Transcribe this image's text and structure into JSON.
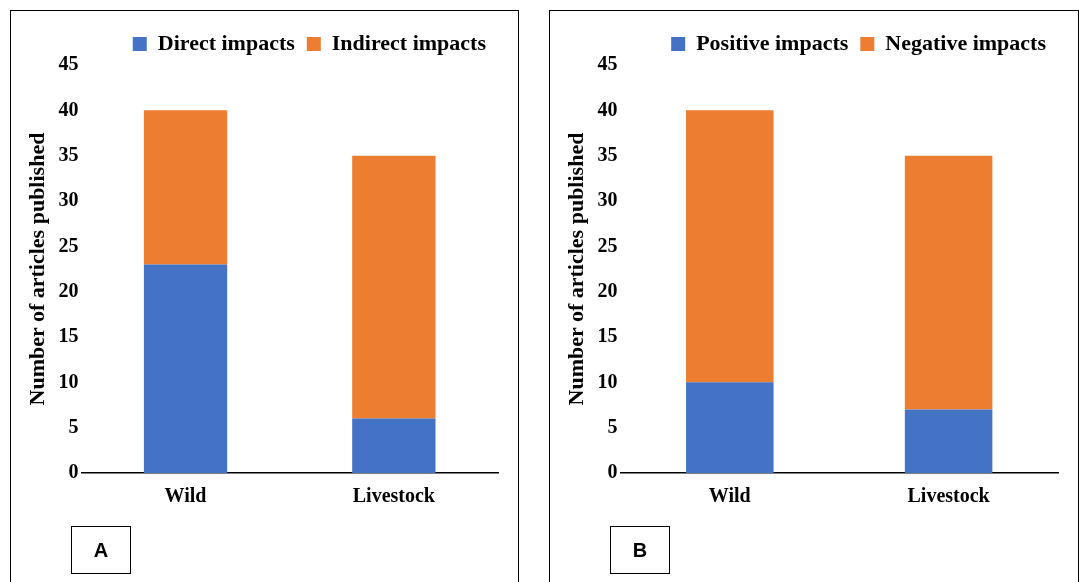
{
  "chart_data": [
    {
      "type": "bar",
      "stacked": true,
      "categories": [
        "Wild",
        "Livestock"
      ],
      "ylabel": "Number of articles published",
      "ylim": [
        0,
        45
      ],
      "yticks": [
        0,
        5,
        10,
        15,
        20,
        25,
        30,
        35,
        40,
        45
      ],
      "grid": false,
      "legend": "top right",
      "annotations": [
        "A"
      ],
      "series": [
        {
          "name": "Direct impacts",
          "color": "#4472c4",
          "values": [
            23,
            6
          ]
        },
        {
          "name": "Indirect impacts",
          "color": "#ed7d31",
          "values": [
            17,
            29
          ]
        }
      ]
    },
    {
      "type": "bar",
      "stacked": true,
      "categories": [
        "Wild",
        "Livestock"
      ],
      "ylabel": "Number of articles published",
      "ylim": [
        0,
        45
      ],
      "yticks": [
        0,
        5,
        10,
        15,
        20,
        25,
        30,
        35,
        40,
        45
      ],
      "grid": false,
      "legend": "top right",
      "annotations": [
        "B"
      ],
      "series": [
        {
          "name": "Positive impacts",
          "color": "#4472c4",
          "values": [
            10,
            7
          ]
        },
        {
          "name": "Negative impacts",
          "color": "#ed7d31",
          "values": [
            30,
            28
          ]
        }
      ]
    }
  ]
}
